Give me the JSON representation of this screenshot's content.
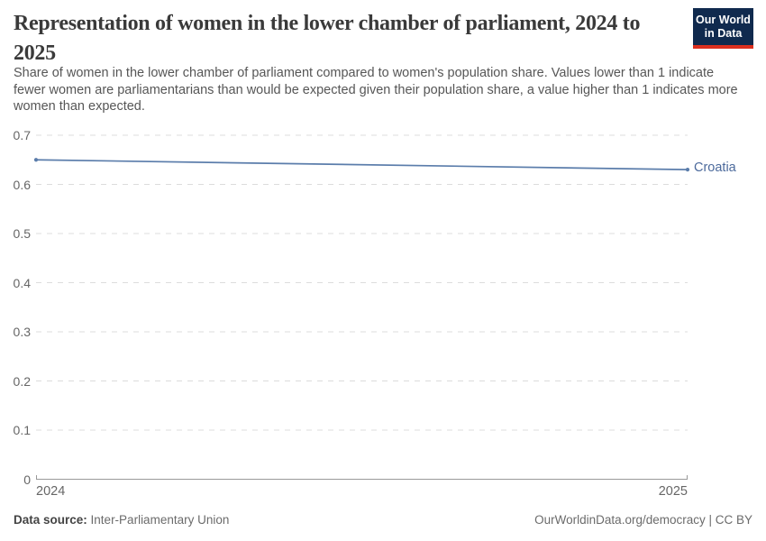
{
  "header": {
    "title": "Representation of women in the lower chamber of parliament, 2024 to 2025",
    "subtitle": "Share of women in the lower chamber of parliament compared to women's population share. Values lower than 1 indicate fewer women are parliamentarians than would be expected given their population share, a value higher than 1 indicates more women than expected.",
    "logo": {
      "line1": "Our World",
      "line2": "in Data"
    }
  },
  "chart_data": {
    "type": "line",
    "title": "Representation of women in the lower chamber of parliament, 2024 to 2025",
    "x": [
      2024,
      2025
    ],
    "xtick_labels": [
      "2024",
      "2025"
    ],
    "series": [
      {
        "name": "Croatia",
        "values": [
          0.65,
          0.63
        ],
        "color": "#5b7dab",
        "label_color": "#4c6a9c"
      }
    ],
    "ylim": [
      0,
      0.7
    ],
    "yticks": [
      0,
      0.1,
      0.2,
      0.3,
      0.4,
      0.5,
      0.6,
      0.7
    ],
    "xlabel": "",
    "ylabel": "",
    "grid": "horizontal-dashed",
    "legend_position": "end-of-line-label"
  },
  "footer": {
    "data_source_label": "Data source:",
    "data_source_value": "Inter-Parliamentary Union",
    "credit": "OurWorldinData.org/democracy | CC BY"
  },
  "colors": {
    "background": "#ffffff",
    "title_text": "#3a3a3a",
    "subtitle_text": "#565656",
    "axis_label": "#666666",
    "gridline": "#dcdcdc",
    "axis_line": "#999999",
    "logo_bg": "#102a4e",
    "logo_accent": "#dc2f1e",
    "footer_text": "#6b6b6b"
  }
}
